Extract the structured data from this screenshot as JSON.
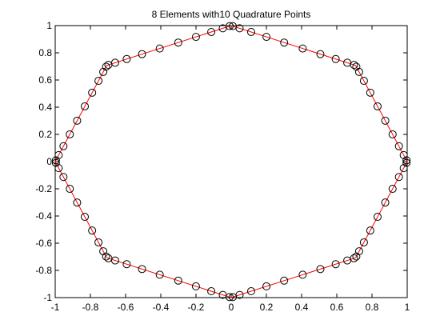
{
  "chart_data": {
    "type": "line",
    "title": "8 Elements with10 Quadrature Points",
    "xlabel": "",
    "ylabel": "",
    "xlim": [
      -1,
      1
    ],
    "ylim": [
      -1,
      1
    ],
    "x_ticks": [
      -1,
      -0.8,
      -0.6,
      -0.4,
      -0.2,
      0,
      0.2,
      0.4,
      0.6,
      0.8,
      1
    ],
    "y_ticks": [
      -1,
      -0.8,
      -0.6,
      -0.4,
      -0.2,
      0,
      0.2,
      0.4,
      0.6,
      0.8,
      1
    ],
    "x_tick_labels": [
      "-1",
      "-0.8",
      "-0.6",
      "-0.4",
      "-0.2",
      "0",
      "0.2",
      "0.4",
      "0.6",
      "0.8",
      "1"
    ],
    "y_tick_labels": [
      "-1",
      "-0.8",
      "-0.6",
      "-0.4",
      "-0.2",
      "0",
      "0.2",
      "0.4",
      "0.6",
      "0.8",
      "1"
    ],
    "grid": false,
    "legend": "none",
    "elements": 8,
    "quadrature_points_per_element": 10,
    "series": [
      {
        "style": "red-line",
        "color": "#ff0000",
        "vertices": "octagon-unit"
      },
      {
        "style": "black-circle-markers",
        "color": "#000000",
        "marker": "circle"
      }
    ]
  },
  "colors": {
    "line": "#ff0000",
    "marker": "#000000",
    "axes": "#000000",
    "background": "#ffffff"
  }
}
